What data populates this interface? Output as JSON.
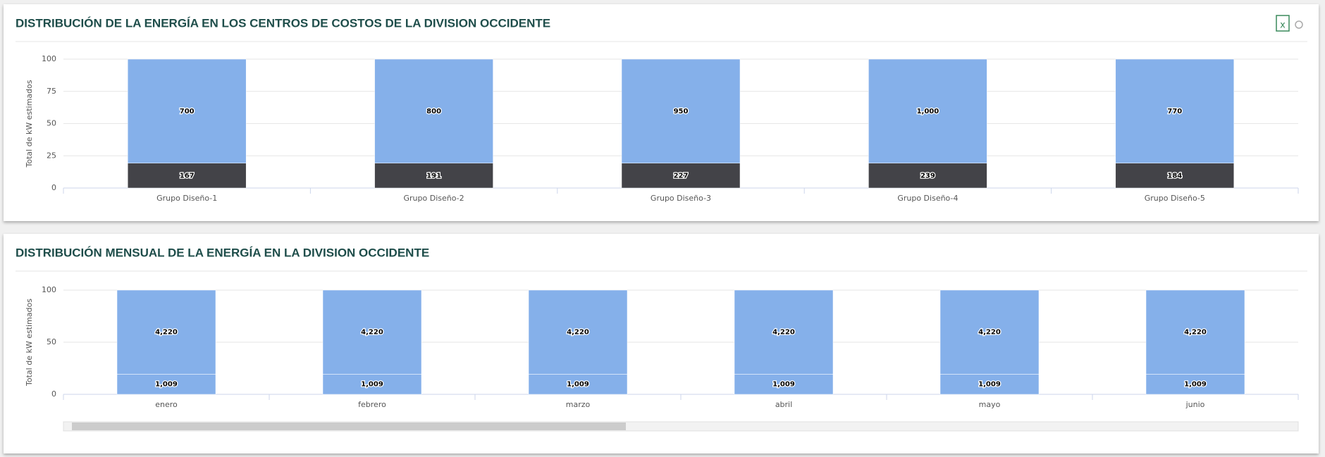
{
  "chart_data": [
    {
      "type": "bar",
      "stacking": "percent",
      "title": "DISTRIBUCIÓN DE LA ENERGÍA EN LOS CENTROS DE COSTOS DE LA DIVISION OCCIDENTE",
      "y_label": "Total de kW estimados",
      "categories": [
        "Grupo Diseño-1",
        "Grupo Diseño-2",
        "Grupo Diseño-3",
        "Grupo Diseño-4",
        "Grupo Diseño-5"
      ],
      "series": [
        {
          "color": "#434348",
          "values": [
            167,
            191,
            227,
            239,
            184
          ]
        },
        {
          "color": "#85b0ea",
          "values": [
            700,
            800,
            950,
            1000,
            770
          ],
          "value_labels": [
            "700",
            "800",
            "950",
            "1,000",
            "770"
          ]
        }
      ],
      "ylim": [
        0,
        100
      ],
      "yticks": [
        0,
        25,
        50,
        75,
        100
      ],
      "grid": true
    },
    {
      "type": "bar",
      "stacking": "percent",
      "title": "DISTRIBUCIÓN MENSUAL DE LA ENERGÍA EN LA DIVISION OCCIDENTE",
      "y_label": "Total de kW estimados",
      "categories": [
        "enero",
        "febrero",
        "marzo",
        "abril",
        "mayo",
        "junio"
      ],
      "series": [
        {
          "color": "#85b0ea",
          "values": [
            1009,
            1009,
            1009,
            1009,
            1009,
            1009
          ],
          "value_labels": [
            "1,009",
            "1,009",
            "1,009",
            "1,009",
            "1,009",
            "1,009"
          ]
        },
        {
          "color": "#85b0ea",
          "values": [
            4220,
            4220,
            4220,
            4220,
            4220,
            4220
          ],
          "value_labels": [
            "4,220",
            "4,220",
            "4,220",
            "4,220",
            "4,220",
            "4,220"
          ]
        }
      ],
      "ylim": [
        0,
        100
      ],
      "yticks": [
        0,
        50,
        100
      ],
      "grid": true
    }
  ]
}
